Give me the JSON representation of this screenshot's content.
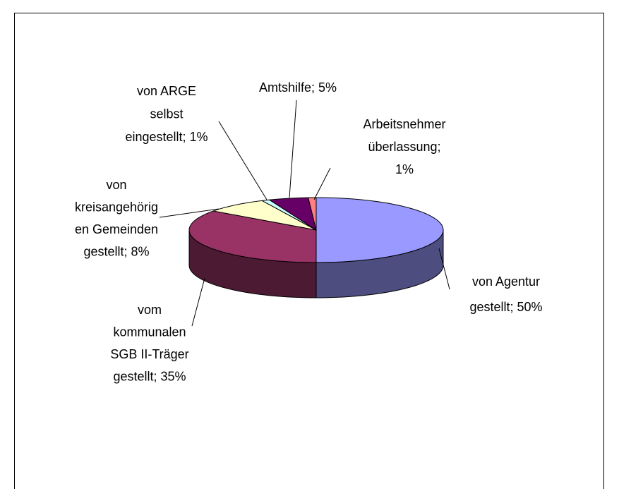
{
  "chart_data": {
    "type": "pie3d",
    "values": [
      50,
      35,
      8,
      1,
      5,
      1
    ],
    "value_labels": [
      [
        "von Agentur",
        "gestellt; 50%"
      ],
      [
        "vom",
        "kommunalen",
        "SGB II-Träger",
        "gestellt; 35%"
      ],
      [
        "von",
        "kreisangehörig",
        "en Gemeinden",
        "gestellt; 8%"
      ],
      [
        "von ARGE",
        "selbst",
        "eingestellt; 1%"
      ],
      [
        "Amtshilfe; 5%"
      ],
      [
        "Arbeitsnehmer",
        "überlassung;",
        "1%"
      ]
    ],
    "colors": [
      "#9999ff",
      "#993366",
      "#ffffcc",
      "#ccffff",
      "#660066",
      "#ff8080"
    ]
  }
}
